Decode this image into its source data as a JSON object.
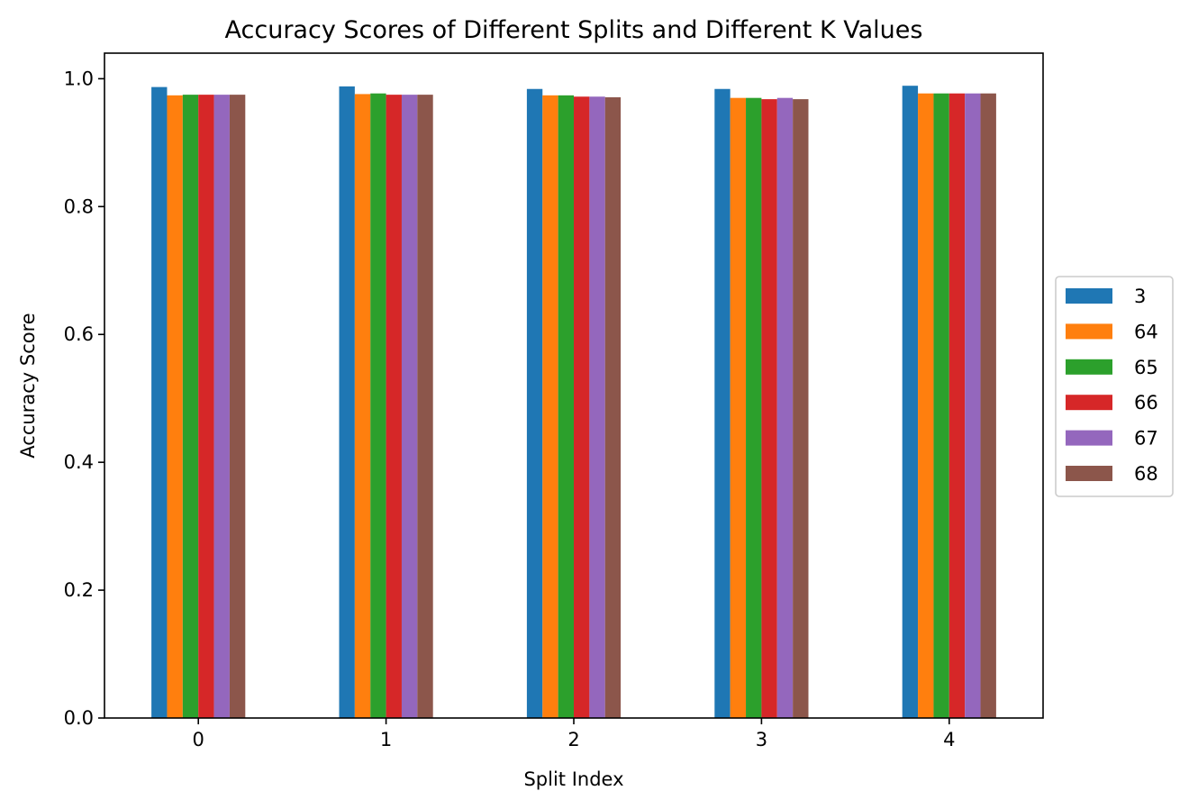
{
  "chart_data": {
    "type": "bar",
    "title": "Accuracy Scores of Different Splits and Different K Values",
    "xlabel": "Split Index",
    "ylabel": "Accuracy Score",
    "categories": [
      "0",
      "1",
      "2",
      "3",
      "4"
    ],
    "ylim": [
      0,
      1.04
    ],
    "yticks": [
      "0.0",
      "0.2",
      "0.4",
      "0.6",
      "0.8",
      "1.0"
    ],
    "grid": false,
    "legend_position": "center-right, outside plot",
    "series": [
      {
        "name": "3",
        "color": "#1f77b4",
        "values": [
          0.987,
          0.988,
          0.984,
          0.984,
          0.989
        ]
      },
      {
        "name": "64",
        "color": "#ff7f0e",
        "values": [
          0.974,
          0.976,
          0.974,
          0.97,
          0.977
        ]
      },
      {
        "name": "65",
        "color": "#2ca02c",
        "values": [
          0.975,
          0.977,
          0.974,
          0.97,
          0.977
        ]
      },
      {
        "name": "66",
        "color": "#d62728",
        "values": [
          0.975,
          0.975,
          0.972,
          0.968,
          0.977
        ]
      },
      {
        "name": "67",
        "color": "#9467bd",
        "values": [
          0.975,
          0.975,
          0.972,
          0.97,
          0.977
        ]
      },
      {
        "name": "68",
        "color": "#8c564b",
        "values": [
          0.975,
          0.975,
          0.971,
          0.968,
          0.977
        ]
      }
    ]
  }
}
